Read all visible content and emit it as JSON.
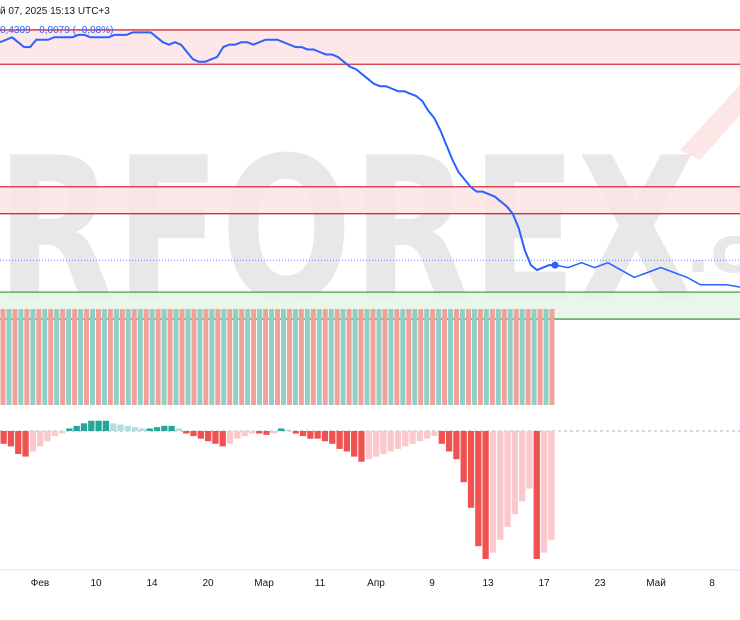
{
  "header": {
    "datetime": "й 07, 2025 15:13 UTC+3",
    "quote": "0,4309  −0,0079 (−0,08%)"
  },
  "watermark": {
    "text": "RFOREX",
    "suffix": ".c"
  },
  "colors": {
    "price_line": "#2962ff",
    "resistance_line": "#d32f3a",
    "resistance_zone": "#fde3e4",
    "support_line": "#43a047",
    "support_zone": "#e6f5e6",
    "volume_up": "#8fcfc6",
    "volume_down": "#f2a09a",
    "hist_strong_neg": "#f05252",
    "hist_weak_neg": "#fbc9cc",
    "hist_strong_pos": "#26a69a",
    "hist_weak_pos": "#b2dfdb"
  },
  "chart_data": {
    "type": "line",
    "x_axis": {
      "ticks": [
        "Фев",
        "10",
        "14",
        "20",
        "Мар",
        "11",
        "Апр",
        "9",
        "13",
        "17",
        "23",
        "Май",
        "8"
      ]
    },
    "price_series": [
      104,
      105,
      106,
      104,
      102,
      102,
      105,
      105,
      105,
      106,
      106,
      106,
      106,
      107,
      107,
      106,
      106,
      106,
      106,
      107,
      107,
      107,
      108,
      108,
      108,
      108,
      106,
      104,
      103,
      104,
      103,
      100,
      97,
      96,
      96,
      97,
      98,
      102,
      103,
      103,
      104,
      104,
      103,
      104,
      105,
      105,
      105,
      104,
      103,
      102,
      102,
      101,
      101,
      100,
      99,
      99,
      98,
      96,
      94,
      93,
      91,
      89,
      87,
      86,
      86,
      85,
      84,
      84,
      83,
      82,
      80,
      76,
      73,
      68,
      62,
      56,
      51,
      48,
      45,
      43,
      43,
      42,
      41,
      39,
      37,
      34,
      28,
      19,
      13,
      11,
      12,
      13,
      13
    ],
    "projection": [
      13,
      12,
      14,
      12,
      14,
      11,
      8,
      10,
      12,
      10,
      8,
      5,
      5,
      5,
      4
    ],
    "levels": {
      "resistance_zone_1": [
        95,
        109
      ],
      "resistance_zone_2": [
        34,
        45
      ],
      "support_zone": [
        -9,
        2
      ],
      "last_price": 15
    },
    "volume": {
      "values": [
        20,
        20,
        20,
        20,
        20,
        20,
        20,
        20,
        20,
        20,
        20,
        20,
        20,
        20,
        20,
        20,
        20,
        20,
        20,
        20,
        20,
        20,
        20,
        20,
        20,
        20,
        20,
        20,
        20,
        20,
        20,
        20,
        20,
        20,
        20,
        20,
        20,
        20,
        20,
        20,
        20,
        20,
        20,
        20,
        20,
        20,
        20,
        20,
        20,
        20,
        20,
        20,
        20,
        20,
        20,
        20,
        20,
        20,
        20,
        20,
        20,
        20,
        20,
        20,
        20,
        20,
        20,
        20,
        20,
        20,
        20,
        20,
        20,
        20,
        20,
        20,
        20,
        20,
        20,
        20,
        20,
        20,
        20,
        20,
        20,
        20,
        20,
        20,
        20,
        20,
        20,
        20,
        20
      ],
      "up": [
        false,
        true,
        false,
        true,
        false,
        true,
        false,
        true,
        false,
        true,
        false,
        true,
        false,
        true,
        false,
        true,
        false,
        true,
        false,
        true,
        false,
        true,
        false,
        true,
        false,
        true,
        false,
        true,
        false,
        true,
        false,
        true,
        false,
        true,
        false,
        true,
        false,
        true,
        false,
        true,
        false,
        true,
        false,
        true,
        false,
        true,
        false,
        true,
        false,
        true,
        false,
        true,
        false,
        true,
        false,
        true,
        false,
        true,
        false,
        true,
        false,
        true,
        false,
        true,
        false,
        true,
        false,
        true,
        false,
        true,
        false,
        true,
        false,
        true,
        false,
        true,
        false,
        true,
        false,
        true,
        false,
        true,
        false,
        true,
        false,
        true,
        false,
        true,
        false,
        true,
        false,
        true,
        false
      ]
    },
    "histogram": [
      -10,
      -12,
      -18,
      -20,
      -16,
      -12,
      -8,
      -4,
      -2,
      2,
      4,
      6,
      8,
      8,
      8,
      6,
      5,
      4,
      3,
      2,
      2,
      3,
      4,
      4,
      2,
      -2,
      -4,
      -6,
      -8,
      -10,
      -12,
      -10,
      -6,
      -4,
      -2,
      -2,
      -3,
      -2,
      2,
      1,
      -2,
      -4,
      -6,
      -6,
      -8,
      -10,
      -14,
      -16,
      -20,
      -24,
      -22,
      -20,
      -18,
      -16,
      -14,
      -12,
      -10,
      -8,
      -6,
      -4,
      -10,
      -16,
      -22,
      -40,
      -60,
      -90,
      -100,
      -95,
      -85,
      -75,
      -65,
      -55,
      -45,
      -100,
      -95,
      -85
    ]
  }
}
